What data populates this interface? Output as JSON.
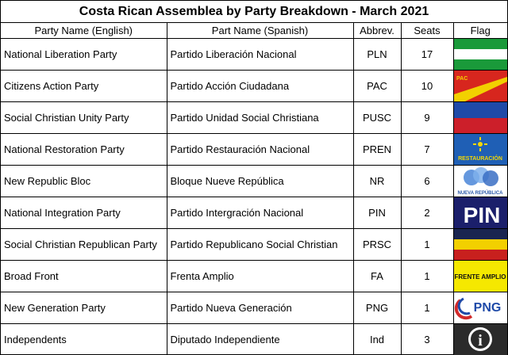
{
  "title": "Costa Rican Assemblea by Party Breakdown - March 2021",
  "columns": {
    "english": "Party Name (English)",
    "spanish": "Part Name (Spanish)",
    "abbrev": "Abbrev.",
    "seats": "Seats",
    "flag": "Flag"
  },
  "rows": [
    {
      "english": "National Liberation Party",
      "spanish": "Partido Liberación Nacional",
      "abbrev": "PLN",
      "seats": "17",
      "flag_icon": "pln-flag-icon"
    },
    {
      "english": "Citizens Action Party",
      "spanish": "Partido Acción Ciudadana",
      "abbrev": "PAC",
      "seats": "10",
      "flag_icon": "pac-flag-icon",
      "flag_text": "PAC"
    },
    {
      "english": "Social Christian Unity Party",
      "spanish": "Partido Unidad Social Christiana",
      "abbrev": "PUSC",
      "seats": "9",
      "flag_icon": "pusc-flag-icon"
    },
    {
      "english": "National Restoration Party",
      "spanish": "Partido Restauración Nacional",
      "abbrev": "PREN",
      "seats": "7",
      "flag_icon": "pren-flag-icon",
      "flag_text": "RESTAURACIÓN"
    },
    {
      "english": "New Republic Bloc",
      "spanish": "Bloque Nueve República",
      "abbrev": "NR",
      "seats": "6",
      "flag_icon": "nr-flag-icon",
      "flag_text": "NUEVA REPÚBLICA"
    },
    {
      "english": "National Integration Party",
      "spanish": "Partido Intergración Nacional",
      "abbrev": "PIN",
      "seats": "2",
      "flag_icon": "pin-flag-icon",
      "flag_text": "PIN"
    },
    {
      "english": "Social Christian Republican Party",
      "spanish": "Partido Republicano Social Christian",
      "abbrev": "PRSC",
      "seats": "1",
      "flag_icon": "prsc-flag-icon"
    },
    {
      "english": "Broad Front",
      "spanish": "Frenta Amplio",
      "abbrev": "FA",
      "seats": "1",
      "flag_icon": "fa-flag-icon",
      "flag_text": "FRENTE AMPLIO"
    },
    {
      "english": "New Generation Party",
      "spanish": "Partido Nueva Generación",
      "abbrev": "PNG",
      "seats": "1",
      "flag_icon": "png-flag-icon",
      "flag_text": "PNG"
    },
    {
      "english": "Independents",
      "spanish": "Diputado Independiente",
      "abbrev": "Ind",
      "seats": "3",
      "flag_icon": "info-icon",
      "flag_text": "i"
    }
  ]
}
